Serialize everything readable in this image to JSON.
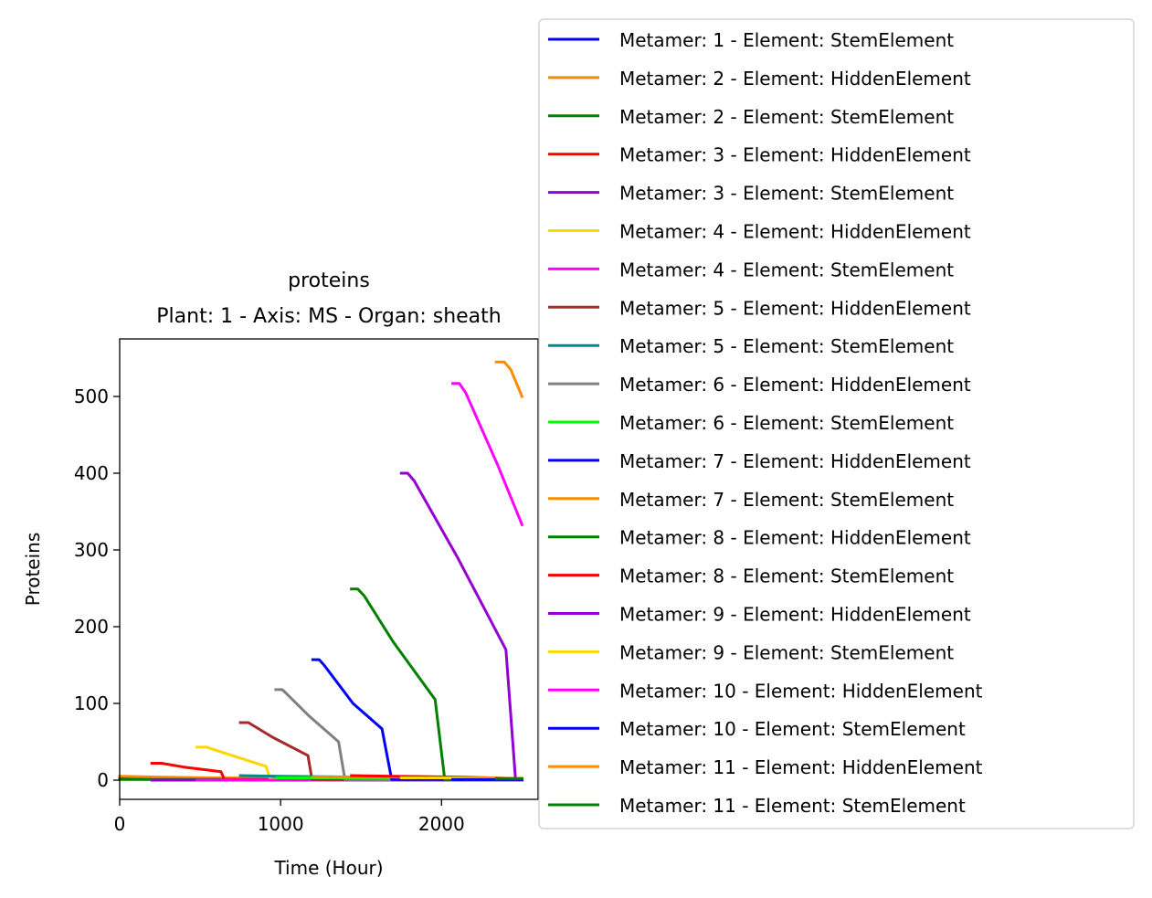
{
  "chart_data": {
    "type": "line",
    "title": "proteins",
    "subtitle": "Plant: 1 - Axis: MS - Organ: sheath",
    "xlabel": "Time (Hour)",
    "ylabel": "Proteins",
    "xlim": [
      0,
      2600
    ],
    "ylim": [
      -25,
      575
    ],
    "xticks": [
      0,
      1000,
      2000
    ],
    "yticks": [
      0,
      100,
      200,
      300,
      400,
      500
    ],
    "grid": false,
    "legend_position": "right, outside plot",
    "series": [
      {
        "name": "Metamer: 1 - Element: StemElement",
        "color": "#0000ff",
        "points": [
          [
            0,
            3
          ],
          [
            800,
            3
          ]
        ]
      },
      {
        "name": "Metamer: 2 - Element: HiddenElement",
        "color": "#ff8c00",
        "points": [
          [
            0,
            5
          ],
          [
            250,
            4
          ],
          [
            600,
            3
          ],
          [
            1000,
            3
          ]
        ]
      },
      {
        "name": "Metamer: 2 - Element: StemElement",
        "color": "#008000",
        "points": [
          [
            0,
            1
          ],
          [
            1000,
            1
          ],
          [
            2000,
            1
          ],
          [
            2500,
            1
          ]
        ]
      },
      {
        "name": "Metamer: 3 - Element: HiddenElement",
        "color": "#ff0000",
        "points": [
          [
            200,
            22
          ],
          [
            260,
            22
          ],
          [
            400,
            17
          ],
          [
            630,
            11
          ],
          [
            650,
            1
          ],
          [
            1000,
            1
          ]
        ]
      },
      {
        "name": "Metamer: 3 - Element: StemElement",
        "color": "#9400d3",
        "points": [
          [
            200,
            0
          ],
          [
            2500,
            0
          ]
        ]
      },
      {
        "name": "Metamer: 4 - Element: HiddenElement",
        "color": "#ffd700",
        "points": [
          [
            480,
            43
          ],
          [
            540,
            43
          ],
          [
            700,
            32
          ],
          [
            910,
            18
          ],
          [
            935,
            1
          ],
          [
            1500,
            1
          ]
        ]
      },
      {
        "name": "Metamer: 4 - Element: StemElement",
        "color": "#ff00ff",
        "points": [
          [
            480,
            0
          ],
          [
            2500,
            0
          ]
        ]
      },
      {
        "name": "Metamer: 5 - Element: HiddenElement",
        "color": "#a52a2a",
        "points": [
          [
            750,
            75
          ],
          [
            800,
            75
          ],
          [
            950,
            56
          ],
          [
            1170,
            32
          ],
          [
            1195,
            1
          ],
          [
            1500,
            1
          ]
        ]
      },
      {
        "name": "Metamer: 5 - Element: StemElement",
        "color": "#008b8b",
        "points": [
          [
            750,
            6
          ],
          [
            1000,
            5
          ],
          [
            1500,
            4
          ],
          [
            2000,
            3
          ],
          [
            2500,
            2
          ]
        ]
      },
      {
        "name": "Metamer: 6 - Element: HiddenElement",
        "color": "#808080",
        "points": [
          [
            970,
            118
          ],
          [
            1010,
            118
          ],
          [
            1040,
            112
          ],
          [
            1180,
            83
          ],
          [
            1360,
            50
          ],
          [
            1400,
            1
          ],
          [
            2000,
            1
          ]
        ]
      },
      {
        "name": "Metamer: 6 - Element: StemElement",
        "color": "#00ff00",
        "points": [
          [
            980,
            3
          ],
          [
            1500,
            3
          ],
          [
            2000,
            2
          ],
          [
            2500,
            2
          ]
        ]
      },
      {
        "name": "Metamer: 7 - Element: HiddenElement",
        "color": "#0000ff",
        "points": [
          [
            1200,
            157
          ],
          [
            1240,
            157
          ],
          [
            1270,
            150
          ],
          [
            1450,
            100
          ],
          [
            1630,
            67
          ],
          [
            1690,
            1
          ],
          [
            2500,
            1
          ]
        ]
      },
      {
        "name": "Metamer: 7 - Element: StemElement",
        "color": "#ff8c00",
        "points": [
          [
            1200,
            4
          ],
          [
            1700,
            4
          ],
          [
            2200,
            3
          ],
          [
            2500,
            2
          ]
        ]
      },
      {
        "name": "Metamer: 8 - Element: HiddenElement",
        "color": "#008000",
        "points": [
          [
            1440,
            249
          ],
          [
            1480,
            249
          ],
          [
            1520,
            240
          ],
          [
            1700,
            180
          ],
          [
            1960,
            105
          ],
          [
            2020,
            1
          ],
          [
            2500,
            1
          ]
        ]
      },
      {
        "name": "Metamer: 8 - Element: StemElement",
        "color": "#ff0000",
        "points": [
          [
            1440,
            6
          ],
          [
            1700,
            5
          ],
          [
            2100,
            4
          ],
          [
            2500,
            2
          ]
        ]
      },
      {
        "name": "Metamer: 9 - Element: HiddenElement",
        "color": "#9400d3",
        "points": [
          [
            1750,
            400
          ],
          [
            1790,
            400
          ],
          [
            1830,
            390
          ],
          [
            2100,
            290
          ],
          [
            2300,
            210
          ],
          [
            2400,
            170
          ],
          [
            2460,
            1
          ],
          [
            2500,
            1
          ]
        ]
      },
      {
        "name": "Metamer: 9 - Element: StemElement",
        "color": "#ffd700",
        "points": [
          [
            1750,
            3
          ],
          [
            2100,
            3
          ],
          [
            2500,
            2
          ]
        ]
      },
      {
        "name": "Metamer: 10 - Element: HiddenElement",
        "color": "#ff00ff",
        "points": [
          [
            2070,
            517
          ],
          [
            2110,
            517
          ],
          [
            2150,
            505
          ],
          [
            2350,
            410
          ],
          [
            2500,
            333
          ]
        ]
      },
      {
        "name": "Metamer: 10 - Element: StemElement",
        "color": "#0000ff",
        "points": [
          [
            2070,
            1
          ],
          [
            2500,
            1
          ]
        ]
      },
      {
        "name": "Metamer: 11 - Element: HiddenElement",
        "color": "#ff8c00",
        "points": [
          [
            2340,
            545
          ],
          [
            2390,
            545
          ],
          [
            2430,
            535
          ],
          [
            2500,
            500
          ]
        ]
      },
      {
        "name": "Metamer: 11 - Element: StemElement",
        "color": "#008000",
        "points": [
          [
            2340,
            2
          ],
          [
            2500,
            2
          ]
        ]
      }
    ]
  }
}
